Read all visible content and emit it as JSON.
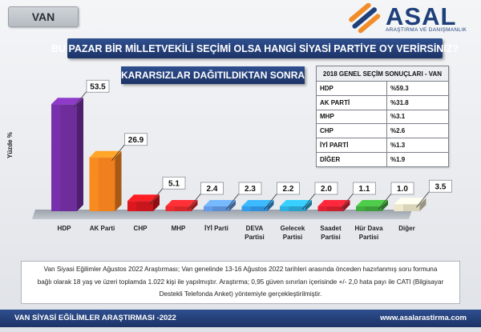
{
  "header": {
    "region_tag": "VAN",
    "logo_word": "ASAL",
    "logo_subtitle": "ARAŞTIRMA VE DANIŞMANLIK",
    "question": "BU PAZAR BİR MİLLETVEKİLİ SEÇİMİ OLSA HANGİ SİYASİ PARTİYE OY VERİRSİNİZ?",
    "subtitle": "KARARSIZLAR DAĞITILDIKTAN SONRA"
  },
  "chart_data": {
    "type": "bar",
    "ylabel": "Yüzde %",
    "categories": [
      "HDP",
      "AK Parti",
      "CHP",
      "MHP",
      "İYİ Parti",
      "DEVA Partisi",
      "Gelecek Partisi",
      "Saadet Partisi",
      "Hür Dava Partisi",
      "Diğer"
    ],
    "category_lines": [
      [
        "HDP"
      ],
      [
        "AK Parti"
      ],
      [
        "CHP"
      ],
      [
        "MHP"
      ],
      [
        "İYİ Parti"
      ],
      [
        "DEVA",
        "Partisi"
      ],
      [
        "Gelecek",
        "Partisi"
      ],
      [
        "Saadet",
        "Partisi"
      ],
      [
        "Hür Dava",
        "Partisi"
      ],
      [
        "Diğer"
      ]
    ],
    "values": [
      53.5,
      26.9,
      5.1,
      2.4,
      2.3,
      2.2,
      2.0,
      1.1,
      1.0,
      3.5
    ],
    "value_labels": [
      "53.5",
      "26.9",
      "5.1",
      "2.4",
      "2.3",
      "2.2",
      "2.0",
      "1.1",
      "1.0",
      "3.5"
    ],
    "colors": [
      "#6e2d9b",
      "#f07f1e",
      "#c9161c",
      "#d6262a",
      "#5b8ed3",
      "#2f8fd8",
      "#2aa0cc",
      "#cc1f2e",
      "#3c9e3a",
      "#d9d3b9"
    ],
    "ylim": [
      0,
      60
    ],
    "grid": false
  },
  "results_table": {
    "title": "2018 GENEL SEÇİM SONUÇLARI - VAN",
    "rows": [
      {
        "party": "HDP",
        "value": "%59.3"
      },
      {
        "party": "AK PARTİ",
        "value": "%31.8"
      },
      {
        "party": "MHP",
        "value": "%3.1"
      },
      {
        "party": "CHP",
        "value": "%2.6"
      },
      {
        "party": "İYİ PARTİ",
        "value": "%1.3"
      },
      {
        "party": "DİĞER",
        "value": "%1.9"
      }
    ]
  },
  "note": {
    "line1": "Van Siyasi Eğilimler Ağustos 2022 Araştırması; Van genelinde 13-16 Ağustos 2022 tarihleri arasında önceden hazırlanmış soru formuna",
    "line2": "bağlı olarak 18 yaş ve üzeri toplamda 1.022 kişi ile yapılmıştır. Araştırma; 0,95 güven sınırları içerisinde +/- 2,0 hata payı ile CATI (Bilgisayar",
    "line3": "Destekli Telefonda Anket) yöntemiyle gerçekleştirilmiştir."
  },
  "footer": {
    "left": "VAN SİYASİ EĞİLİMLER ARAŞTIRMASI -2022",
    "right": "www.asalarastirma.com"
  }
}
